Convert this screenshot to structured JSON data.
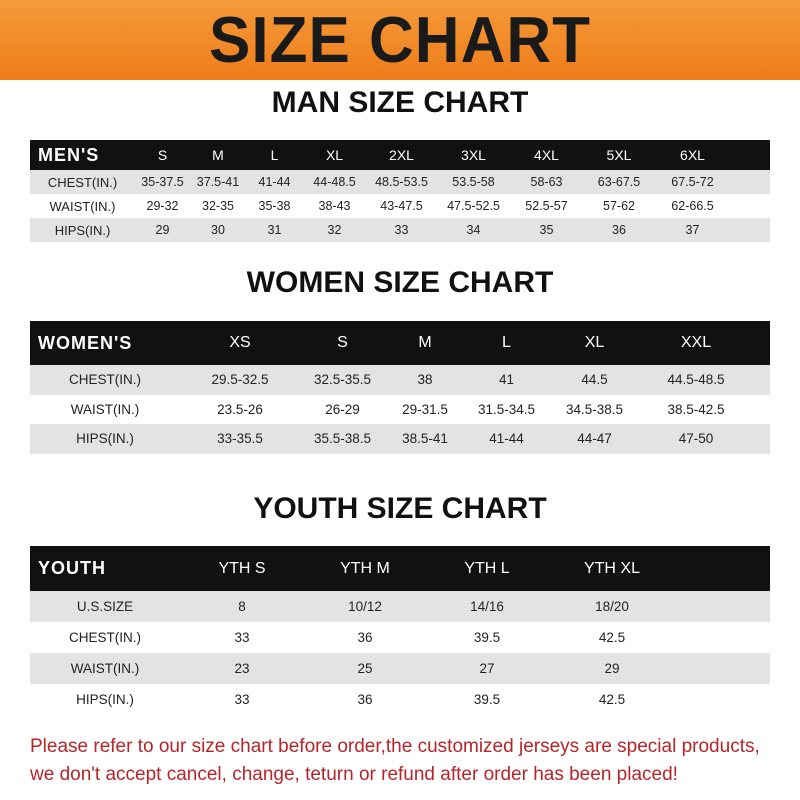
{
  "title": "SIZE CHART",
  "men": {
    "heading": "MAN SIZE CHART",
    "header": [
      "MEN'S",
      "S",
      "M",
      "L",
      "XL",
      "2XL",
      "3XL",
      "4XL",
      "5XL",
      "6XL"
    ],
    "rows": [
      [
        "CHEST(IN.)",
        "35-37.5",
        "37.5-41",
        "41-44",
        "44-48.5",
        "48.5-53.5",
        "53.5-58",
        "58-63",
        "63-67.5",
        "67.5-72"
      ],
      [
        "WAIST(IN.)",
        "29-32",
        "32-35",
        "35-38",
        "38-43",
        "43-47.5",
        "47.5-52.5",
        "52.5-57",
        "57-62",
        "62-66.5"
      ],
      [
        "HIPS(IN.)",
        "29",
        "30",
        "31",
        "32",
        "33",
        "34",
        "35",
        "36",
        "37"
      ]
    ]
  },
  "women": {
    "heading": "WOMEN SIZE CHART",
    "header": [
      "WOMEN'S",
      "XS",
      "S",
      "M",
      "L",
      "XL",
      "XXL"
    ],
    "rows": [
      [
        "CHEST(IN.)",
        "29.5-32.5",
        "32.5-35.5",
        "38",
        "41",
        "44.5",
        "44.5-48.5"
      ],
      [
        "WAIST(IN.)",
        "23.5-26",
        "26-29",
        "29-31.5",
        "31.5-34.5",
        "34.5-38.5",
        "38.5-42.5"
      ],
      [
        "HIPS(IN.)",
        "33-35.5",
        "35.5-38.5",
        "38.5-41",
        "41-44",
        "44-47",
        "47-50"
      ]
    ]
  },
  "youth": {
    "heading": "YOUTH SIZE CHART",
    "header": [
      "YOUTH",
      "YTH S",
      "YTH M",
      "YTH L",
      "YTH XL"
    ],
    "rows": [
      [
        "U.S.SIZE",
        "8",
        "10/12",
        "14/16",
        "18/20"
      ],
      [
        "CHEST(IN.)",
        "33",
        "36",
        "39.5",
        "42.5"
      ],
      [
        "WAIST(IN.)",
        "23",
        "25",
        "27",
        "29"
      ],
      [
        "HIPS(IN.)",
        "33",
        "36",
        "39.5",
        "42.5"
      ]
    ]
  },
  "notice": [
    "Please refer to our size chart before order,the customized jerseys are special products,",
    "we don't accept cancel, change, teturn or refund after order has been placed!"
  ]
}
